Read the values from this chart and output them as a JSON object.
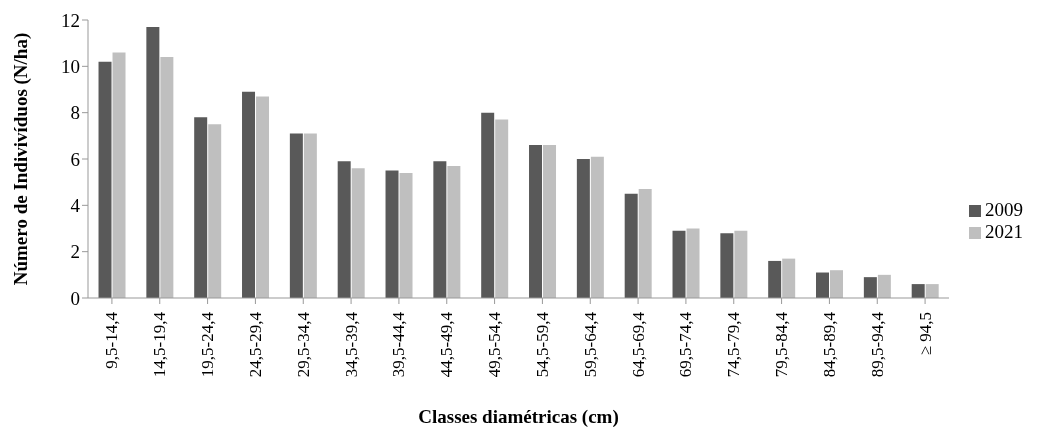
{
  "chart_data": {
    "type": "bar",
    "xlabel": "Classes diamétricas (cm)",
    "ylabel": "Número de Indivivíduos (N/ha)",
    "categories": [
      "9,5-14,4",
      "14,5-19,4",
      "19,5-24,4",
      "24,5-29,4",
      "29,5-34,4",
      "34,5-39,4",
      "39,5-44,4",
      "44,5-49,4",
      "49,5-54,4",
      "54,5-59,4",
      "59,5-64,4",
      "64,5-69,4",
      "69,5-74,4",
      "74,5-79,4",
      "79,5-84,4",
      "84,5-89,4",
      "89,5-94,4",
      "≥ 94,5"
    ],
    "series": [
      {
        "name": "2009",
        "color": "#595959",
        "values": [
          10.2,
          11.7,
          7.8,
          8.9,
          7.1,
          5.9,
          5.5,
          5.9,
          8.0,
          6.6,
          6.0,
          4.5,
          2.9,
          2.8,
          1.6,
          1.1,
          0.9,
          0.6
        ]
      },
      {
        "name": "2021",
        "color": "#bfbfbf",
        "values": [
          10.6,
          10.4,
          7.5,
          8.7,
          7.1,
          5.6,
          5.4,
          5.7,
          7.7,
          6.6,
          6.1,
          4.7,
          3.0,
          2.9,
          1.7,
          1.2,
          1.0,
          0.6
        ]
      }
    ],
    "ylim": [
      0,
      12
    ],
    "yticks": [
      0,
      2,
      4,
      6,
      8,
      10,
      12
    ],
    "grid": false,
    "legend": "right"
  }
}
